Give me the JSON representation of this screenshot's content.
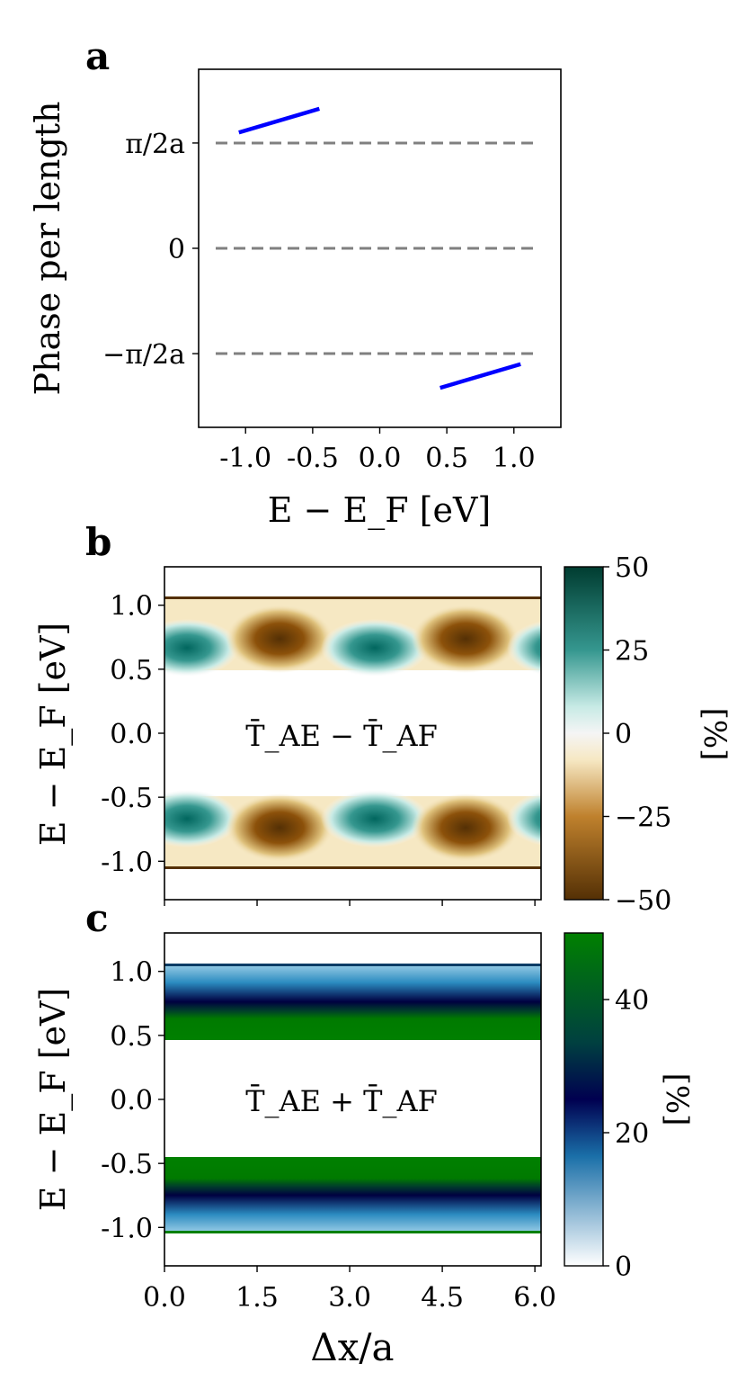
{
  "chart_data": [
    {
      "panel": "a",
      "type": "line",
      "xlabel": "E − E_F [eV]",
      "ylabel": "Phase per length",
      "xlim": [
        -1.35,
        1.35
      ],
      "ylim": [
        -3.4,
        3.4
      ],
      "xticks": [
        -1.0,
        -0.5,
        0.0,
        0.5,
        1.0
      ],
      "xtick_labels": [
        "-1.0",
        "-0.5",
        "0.0",
        "0.5",
        "1.0"
      ],
      "yticks": [
        2,
        0,
        -2
      ],
      "ytick_labels": [
        "π/2a",
        "0",
        "−π/2a"
      ],
      "reference_lines": [
        2,
        0,
        -2
      ],
      "reference_color": "#808080",
      "series": [
        {
          "color": "#0000ff",
          "x": [
            -1.05,
            -0.45
          ],
          "y": [
            2.2,
            2.65
          ]
        },
        {
          "color": "#0000ff",
          "x": [
            0.45,
            1.05
          ],
          "y": [
            -2.65,
            -2.2
          ]
        }
      ]
    },
    {
      "panel": "b",
      "type": "heatmap",
      "annotation": "T̄_AE − T̄_AF",
      "ylabel": "E − E_F [eV]",
      "xlim": [
        0.0,
        6.1
      ],
      "ylim": [
        -1.3,
        1.3
      ],
      "yticks": [
        1.0,
        0.5,
        0.0,
        -0.5,
        -1.0
      ],
      "ytick_labels": [
        "1.0",
        "0.5",
        "0.0",
        "-0.5",
        "-1.0"
      ],
      "bands": [
        [
          0.45,
          1.05
        ],
        [
          -1.05,
          -0.45
        ]
      ],
      "colormap": "BrBG",
      "colorbar": {
        "label": "[%]",
        "range": [
          -50,
          50
        ],
        "ticks": [
          50,
          25,
          0,
          -25,
          -50
        ],
        "tick_labels": [
          "50",
          "25",
          "0",
          "−25",
          "−50"
        ]
      }
    },
    {
      "panel": "c",
      "type": "heatmap",
      "annotation": "T̄_AE + T̄_AF",
      "xlabel": "Δx/a",
      "ylabel": "E − E_F [eV]",
      "xlim": [
        0.0,
        6.1
      ],
      "ylim": [
        -1.3,
        1.3
      ],
      "xticks": [
        0.0,
        1.5,
        3.0,
        4.5,
        6.0
      ],
      "xtick_labels": [
        "0.0",
        "1.5",
        "3.0",
        "4.5",
        "6.0"
      ],
      "yticks": [
        1.0,
        0.5,
        0.0,
        -0.5,
        -1.0
      ],
      "ytick_labels": [
        "1.0",
        "0.5",
        "0.0",
        "-0.5",
        "-1.0"
      ],
      "bands": [
        [
          0.45,
          1.05
        ],
        [
          -1.05,
          -0.45
        ]
      ],
      "colormap": "ocean_r",
      "colorbar": {
        "label": "[%]",
        "range": [
          0,
          50
        ],
        "ticks": [
          40,
          20,
          0
        ],
        "tick_labels": [
          "40",
          "20",
          "0"
        ]
      }
    }
  ],
  "panel_letters": [
    "a",
    "b",
    "c"
  ]
}
